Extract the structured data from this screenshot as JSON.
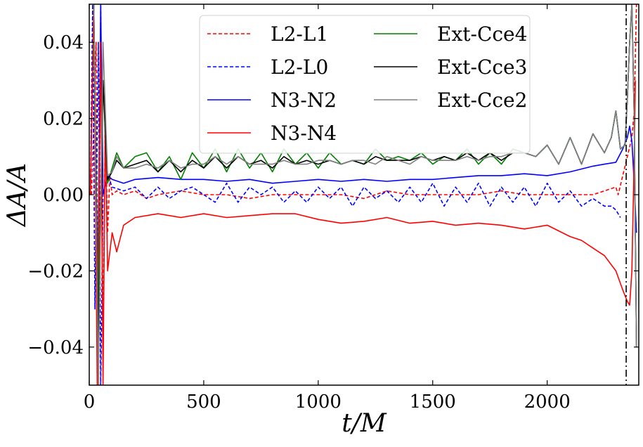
{
  "chart_data": {
    "type": "line",
    "xlabel": "t/M",
    "ylabel": "ΔA/A",
    "xlim": [
      0,
      2400
    ],
    "ylim": [
      -0.05,
      0.05
    ],
    "xticks": [
      0,
      500,
      1000,
      1500,
      2000
    ],
    "xtick_labels": [
      "0",
      "500",
      "1000",
      "1500",
      "2000"
    ],
    "yticks": [
      -0.04,
      -0.02,
      0.0,
      0.02,
      0.04
    ],
    "ytick_labels": [
      "−0.04",
      "−0.02",
      "0.00",
      "0.02",
      "0.04"
    ],
    "vertical_line": {
      "x": 2345,
      "style": "dash-dot",
      "color": "#000000"
    },
    "grid": false,
    "legend": {
      "placement": "top-center",
      "columns": 2
    },
    "series": [
      {
        "name": "L2-L1",
        "color": "#ff0000",
        "style": "dashed",
        "x": [
          10,
          30,
          40,
          50,
          60,
          70,
          80,
          90,
          100,
          120,
          150,
          200,
          250,
          300,
          400,
          500,
          600,
          700,
          800,
          900,
          1000,
          1100,
          1200,
          1300,
          1400,
          1500,
          1600,
          1700,
          1800,
          1900,
          2000,
          2100,
          2200,
          2250,
          2300,
          2310,
          2330,
          2350,
          2370,
          2380,
          2390
        ],
        "y": [
          0.0,
          0.04,
          -0.05,
          0.05,
          -0.04,
          0.02,
          -0.01,
          0.005,
          0.0,
          0.001,
          0.0,
          0.001,
          -0.001,
          0.0,
          0.001,
          0.0,
          0.0,
          -0.001,
          0.0,
          0.0,
          0.0,
          0.0,
          -0.001,
          0.001,
          0.0,
          0.0,
          0.0,
          0.0,
          0.001,
          0.0,
          0.0,
          0.0,
          0.0,
          0.001,
          0.002,
          0.0,
          0.005,
          0.01,
          0.015,
          0.022,
          0.05
        ]
      },
      {
        "name": "L2-L0",
        "color": "#0000ff",
        "style": "dashed",
        "x": [
          5,
          15,
          25,
          40,
          50,
          60,
          80,
          100,
          150,
          200,
          250,
          300,
          350,
          400,
          450,
          500,
          550,
          600,
          650,
          700,
          750,
          800,
          850,
          900,
          950,
          1000,
          1050,
          1100,
          1150,
          1200,
          1250,
          1300,
          1350,
          1400,
          1450,
          1500,
          1550,
          1600,
          1650,
          1700,
          1750,
          1800,
          1850,
          1900,
          1950,
          2000,
          2050,
          2100,
          2150,
          2200,
          2250,
          2280,
          2300,
          2320
        ],
        "y": [
          0.0,
          0.05,
          -0.03,
          0.04,
          -0.05,
          0.0,
          0.005,
          0.002,
          0.001,
          0.002,
          -0.001,
          0.002,
          -0.001,
          0.001,
          0.002,
          0.0,
          -0.002,
          0.003,
          -0.002,
          0.002,
          0.0,
          0.002,
          -0.002,
          0.001,
          -0.002,
          0.002,
          -0.001,
          0.002,
          -0.003,
          0.002,
          -0.001,
          0.001,
          -0.002,
          0.002,
          -0.002,
          0.003,
          -0.003,
          0.002,
          -0.002,
          0.003,
          -0.003,
          0.002,
          -0.002,
          0.002,
          -0.003,
          0.003,
          -0.002,
          0.001,
          -0.003,
          -0.001,
          -0.003,
          -0.003,
          -0.004,
          -0.006
        ]
      },
      {
        "name": "N3-N2",
        "color": "#0000ff",
        "style": "solid",
        "x": [
          5,
          20,
          35,
          50,
          60,
          80,
          100,
          150,
          200,
          300,
          400,
          500,
          600,
          700,
          800,
          900,
          1000,
          1100,
          1200,
          1300,
          1400,
          1500,
          1600,
          1700,
          1800,
          1900,
          2000,
          2100,
          2200,
          2250,
          2300,
          2330,
          2350,
          2360,
          2370,
          2380,
          2390
        ],
        "y": [
          0.0,
          0.05,
          -0.04,
          0.05,
          0.0,
          0.005,
          0.004,
          0.003,
          0.004,
          0.0045,
          0.004,
          0.004,
          0.0035,
          0.004,
          0.003,
          0.0035,
          0.004,
          0.0035,
          0.004,
          0.0035,
          0.004,
          0.004,
          0.0045,
          0.005,
          0.005,
          0.0055,
          0.005,
          0.006,
          0.0075,
          0.008,
          0.0085,
          0.012,
          0.015,
          0.018,
          0.014,
          0.003,
          -0.01
        ]
      },
      {
        "name": "N3-N4",
        "color": "#ff0000",
        "style": "solid",
        "x": [
          5,
          20,
          35,
          50,
          60,
          70,
          80,
          100,
          120,
          150,
          200,
          300,
          400,
          500,
          600,
          700,
          800,
          900,
          1000,
          1100,
          1200,
          1300,
          1400,
          1500,
          1600,
          1700,
          1800,
          1900,
          2000,
          2100,
          2150,
          2200,
          2250,
          2300,
          2330,
          2350,
          2360,
          2370,
          2380,
          2385
        ],
        "y": [
          0.0,
          0.05,
          -0.05,
          0.04,
          -0.05,
          0.02,
          -0.02,
          -0.01,
          -0.015,
          -0.008,
          -0.006,
          -0.005,
          -0.006,
          -0.005,
          -0.006,
          -0.0055,
          -0.005,
          -0.005,
          -0.0065,
          -0.0075,
          -0.007,
          -0.006,
          -0.0075,
          -0.007,
          -0.008,
          -0.0075,
          -0.008,
          -0.009,
          -0.008,
          -0.011,
          -0.012,
          -0.014,
          -0.016,
          -0.02,
          -0.025,
          -0.028,
          -0.029,
          -0.02,
          0.01,
          0.03
        ]
      },
      {
        "name": "Ext-Cce4",
        "color": "#008000",
        "style": "solid",
        "x": [
          20,
          40,
          60,
          80,
          100,
          120,
          150,
          200,
          250,
          300,
          350,
          400,
          450,
          500,
          550,
          600,
          650,
          700,
          750,
          800,
          850,
          900,
          950,
          1000,
          1050,
          1100,
          1150,
          1200,
          1250,
          1300,
          1350,
          1400,
          1450,
          1500,
          1550,
          1600,
          1650,
          1700,
          1750,
          1800,
          1850,
          1900,
          1950,
          2000,
          2050,
          2100,
          2150,
          2200,
          2250,
          2280,
          2300,
          2320,
          2340,
          2350,
          2360,
          2370,
          2380,
          2390
        ],
        "y": [
          0.04,
          -0.03,
          0.03,
          0.003,
          0.007,
          0.011,
          0.007,
          0.01,
          0.011,
          0.006,
          0.01,
          0.004,
          0.011,
          0.007,
          0.012,
          0.006,
          0.012,
          0.007,
          0.011,
          0.006,
          0.012,
          0.008,
          0.011,
          0.007,
          0.011,
          0.008,
          0.009,
          0.008,
          0.012,
          0.009,
          0.01,
          0.009,
          0.011,
          0.008,
          0.01,
          0.009,
          0.012,
          0.008,
          0.011,
          0.008,
          0.012,
          0.011,
          0.01,
          0.013,
          0.008,
          0.015,
          0.008,
          0.016,
          0.011,
          0.015,
          0.022,
          0.012,
          0.013,
          0.025,
          0.04,
          0.05,
          0.02,
          -0.04
        ]
      },
      {
        "name": "Ext-Cce3",
        "color": "#000000",
        "style": "solid",
        "x": [
          20,
          40,
          60,
          80,
          100,
          120,
          150,
          200,
          250,
          300,
          350,
          400,
          450,
          500,
          550,
          600,
          650,
          700,
          750,
          800,
          850,
          900,
          950,
          1000,
          1050,
          1100,
          1150,
          1200,
          1250,
          1300,
          1350,
          1400,
          1450,
          1500,
          1550,
          1600,
          1650,
          1700,
          1750,
          1800,
          1850,
          1900,
          1950,
          2000,
          2050,
          2100,
          2150,
          2200,
          2250,
          2280,
          2300,
          2320,
          2340,
          2350,
          2360,
          2370,
          2380,
          2390
        ],
        "y": [
          0.05,
          -0.04,
          0.03,
          0.004,
          0.006,
          0.009,
          0.007,
          0.008,
          0.009,
          0.006,
          0.009,
          0.006,
          0.009,
          0.007,
          0.01,
          0.007,
          0.01,
          0.008,
          0.009,
          0.007,
          0.01,
          0.008,
          0.009,
          0.008,
          0.009,
          0.008,
          0.009,
          0.008,
          0.01,
          0.009,
          0.009,
          0.009,
          0.01,
          0.009,
          0.01,
          0.009,
          0.011,
          0.009,
          0.011,
          0.009,
          0.011,
          0.011,
          0.01,
          0.013,
          0.008,
          0.015,
          0.008,
          0.016,
          0.011,
          0.015,
          0.022,
          0.012,
          0.013,
          0.025,
          0.04,
          0.05,
          0.02,
          -0.04
        ]
      },
      {
        "name": "Ext-Cce2",
        "color": "#808080",
        "style": "solid",
        "x": [
          20,
          40,
          60,
          80,
          100,
          120,
          150,
          200,
          250,
          300,
          350,
          400,
          450,
          500,
          550,
          600,
          650,
          700,
          750,
          800,
          850,
          900,
          950,
          1000,
          1050,
          1100,
          1150,
          1200,
          1250,
          1300,
          1350,
          1400,
          1450,
          1500,
          1550,
          1600,
          1650,
          1700,
          1750,
          1800,
          1850,
          1900,
          1950,
          2000,
          2050,
          2100,
          2150,
          2200,
          2250,
          2280,
          2300,
          2320,
          2340,
          2350,
          2360,
          2370,
          2380,
          2390
        ],
        "y": [
          0.05,
          -0.05,
          0.04,
          0.005,
          0.006,
          0.01,
          0.007,
          0.007,
          0.008,
          0.007,
          0.009,
          0.007,
          0.008,
          0.008,
          0.01,
          0.008,
          0.01,
          0.008,
          0.008,
          0.008,
          0.009,
          0.008,
          0.008,
          0.009,
          0.009,
          0.008,
          0.009,
          0.009,
          0.008,
          0.01,
          0.009,
          0.008,
          0.01,
          0.009,
          0.009,
          0.009,
          0.01,
          0.009,
          0.01,
          0.01,
          0.011,
          0.011,
          0.01,
          0.013,
          0.008,
          0.015,
          0.008,
          0.016,
          0.011,
          0.015,
          0.022,
          0.012,
          0.013,
          0.025,
          0.04,
          0.05,
          0.02,
          -0.04
        ]
      }
    ]
  }
}
